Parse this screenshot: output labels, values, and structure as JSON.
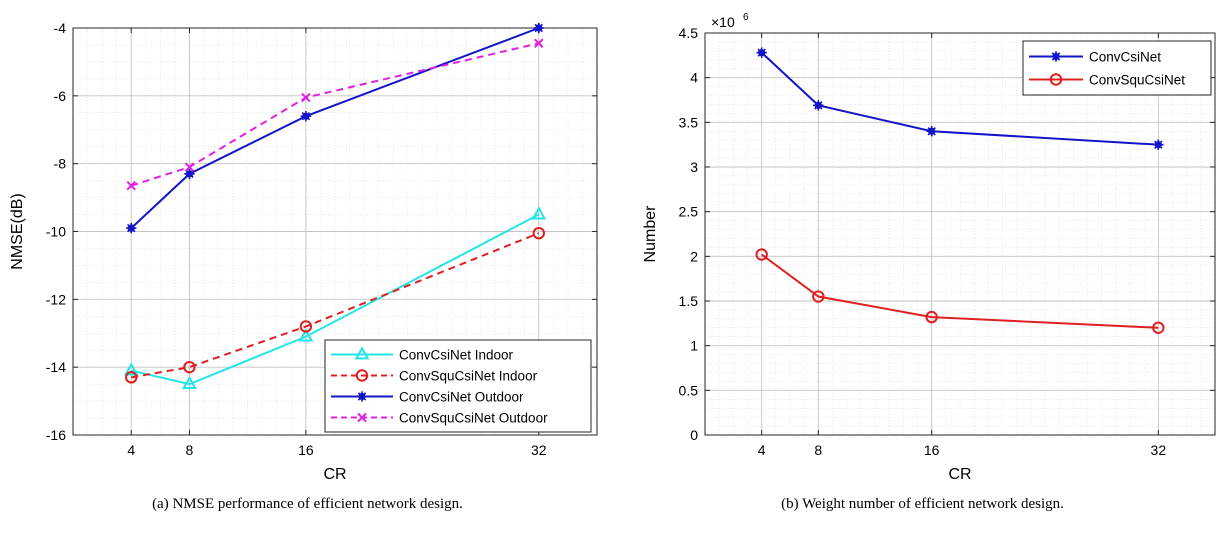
{
  "chart_data": [
    {
      "type": "line",
      "caption": "(a) NMSE performance of efficient network design.",
      "xlabel": "CR",
      "ylabel": "NMSE(dB)",
      "xlim": [
        0,
        36
      ],
      "ylim": [
        -16,
        -4
      ],
      "xticks": [
        4,
        8,
        16,
        32
      ],
      "yticks": [
        -16,
        -14,
        -12,
        -10,
        -8,
        -6,
        -4
      ],
      "ytick_labels": [
        "-16",
        "-14",
        "-12",
        "-10",
        "-8",
        "-6",
        "-4"
      ],
      "grid": true,
      "minor_grid": true,
      "legend_position": "bottom-right",
      "series": [
        {
          "name": "ConvCsiNet Indoor",
          "x": [
            4,
            8,
            16,
            32
          ],
          "y": [
            -14.1,
            -14.5,
            -13.1,
            -9.5
          ],
          "color": "#22e5e5",
          "dash": "solid",
          "marker": "triangle"
        },
        {
          "name": "ConvSquCsiNet Indoor",
          "x": [
            4,
            8,
            16,
            32
          ],
          "y": [
            -14.3,
            -14.0,
            -12.8,
            -10.05
          ],
          "color": "#e02020",
          "dash": "dashed",
          "marker": "circle"
        },
        {
          "name": "ConvCsiNet Outdoor",
          "x": [
            4,
            8,
            16,
            32
          ],
          "y": [
            -9.9,
            -8.3,
            -6.6,
            -4.0
          ],
          "color": "#1414c8",
          "dash": "solid",
          "marker": "asterisk"
        },
        {
          "name": "ConvSquCsiNet Outdoor",
          "x": [
            4,
            8,
            16,
            32
          ],
          "y": [
            -8.65,
            -8.1,
            -6.05,
            -4.45
          ],
          "color": "#e020e0",
          "dash": "dashed",
          "marker": "x"
        }
      ]
    },
    {
      "type": "line",
      "caption": "(b) Weight number of efficient network design.",
      "xlabel": "CR",
      "ylabel": "Number",
      "exponent_label": "×10",
      "exponent_power": "6",
      "xlim": [
        0,
        36
      ],
      "ylim": [
        0,
        4.5
      ],
      "xticks": [
        4,
        8,
        16,
        32
      ],
      "yticks": [
        0,
        0.5,
        1,
        1.5,
        2,
        2.5,
        3,
        3.5,
        4,
        4.5
      ],
      "ytick_labels": [
        "0",
        "0.5",
        "1",
        "1.5",
        "2",
        "2.5",
        "3",
        "3.5",
        "4",
        "4.5"
      ],
      "grid": true,
      "minor_grid": true,
      "legend_position": "top-right",
      "series": [
        {
          "name": "ConvCsiNet",
          "x": [
            4,
            8,
            16,
            32
          ],
          "y": [
            4.28,
            3.69,
            3.4,
            3.25
          ],
          "color": "#1414c8",
          "dash": "solid",
          "marker": "asterisk"
        },
        {
          "name": "ConvSquCsiNet",
          "x": [
            4,
            8,
            16,
            32
          ],
          "y": [
            2.02,
            1.55,
            1.32,
            1.2
          ],
          "color": "#e02020",
          "dash": "solid",
          "marker": "circle"
        }
      ]
    }
  ]
}
